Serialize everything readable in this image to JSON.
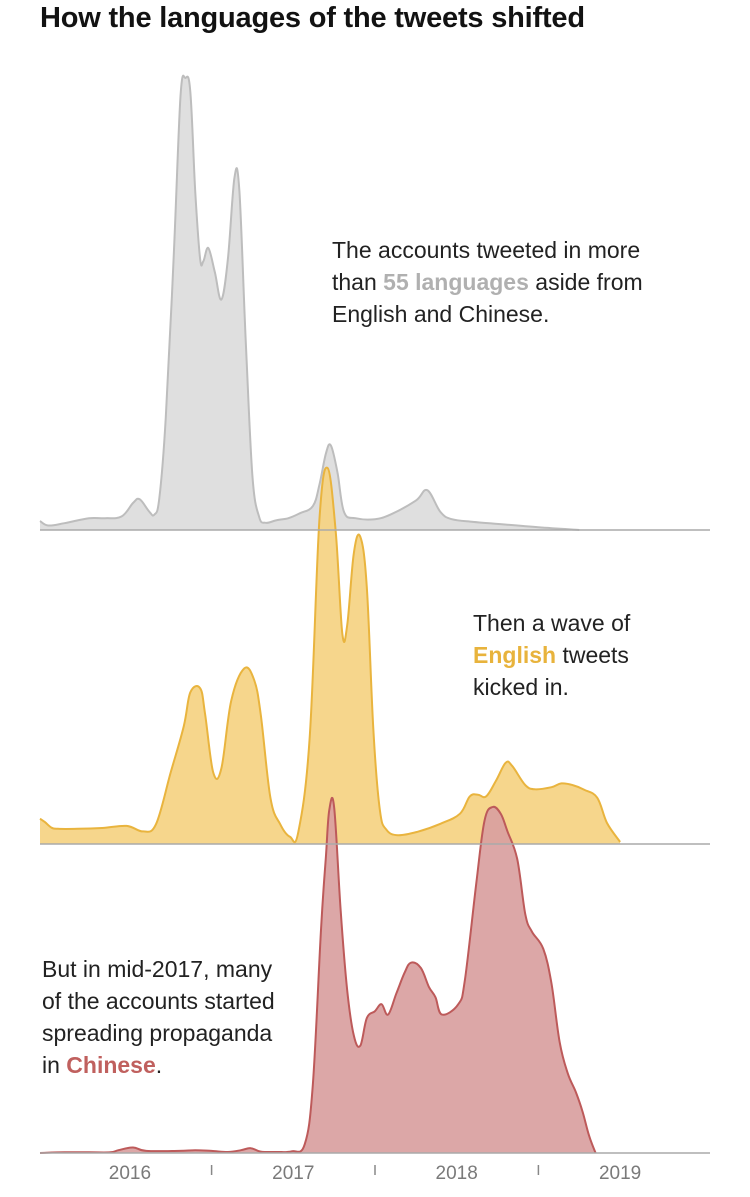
{
  "title": "How the languages of the tweets shifted",
  "colors": {
    "other_fill": "#dcdcdc",
    "other_stroke": "#bdbdbd",
    "english_fill": "#f5d382",
    "english_stroke": "#e9b43e",
    "english_text": "#e8b33c",
    "chinese_fill": "#d9a0a0",
    "chinese_stroke": "#bd5a5a",
    "chinese_text": "#c0605e",
    "other_text": "#b0b0b0",
    "baseline": "#aaaaaa"
  },
  "annotations": {
    "other": {
      "line1": "The accounts tweeted in more",
      "line2_pre": "than ",
      "line2_hl": "55 languages",
      "line2_post": " aside from",
      "line3": "English and Chinese."
    },
    "english": {
      "line1": "Then a wave of",
      "line2_hl": "English",
      "line2_post": " tweets",
      "line3": "kicked in."
    },
    "chinese": {
      "line1": "But in mid-2017, many",
      "line2": "of the accounts started",
      "line3": "spreading propaganda",
      "line4_pre": "in ",
      "line4_hl": "Chinese",
      "line4_post": "."
    }
  },
  "chart_data": {
    "type": "area",
    "title": "How the languages of the tweets shifted",
    "x_unit": "year",
    "xlim": [
      2015.45,
      2019.55
    ],
    "xticks": [
      {
        "value": 2016,
        "label": "2016"
      },
      {
        "value": 2017,
        "label": "2017"
      },
      {
        "value": 2018,
        "label": "2018"
      },
      {
        "value": 2019,
        "label": "2019"
      }
    ],
    "year_dividers": [
      2016.5,
      2017.5,
      2018.5
    ],
    "grid": false,
    "legend": "none",
    "series": [
      {
        "name": "Other languages",
        "ylim": [
          0,
          100
        ],
        "points": [
          [
            2015.45,
            2
          ],
          [
            2015.5,
            1
          ],
          [
            2015.6,
            1.5
          ],
          [
            2015.75,
            2.6
          ],
          [
            2015.85,
            2.6
          ],
          [
            2015.95,
            3
          ],
          [
            2016.02,
            6
          ],
          [
            2016.06,
            6.8
          ],
          [
            2016.12,
            4
          ],
          [
            2016.15,
            3.4
          ],
          [
            2016.18,
            7
          ],
          [
            2016.22,
            25
          ],
          [
            2016.27,
            62
          ],
          [
            2016.31,
            96
          ],
          [
            2016.34,
            100
          ],
          [
            2016.37,
            97
          ],
          [
            2016.4,
            75
          ],
          [
            2016.43,
            60
          ],
          [
            2016.45,
            59.5
          ],
          [
            2016.48,
            62.4
          ],
          [
            2016.52,
            57
          ],
          [
            2016.56,
            51
          ],
          [
            2016.6,
            60
          ],
          [
            2016.64,
            78
          ],
          [
            2016.67,
            75
          ],
          [
            2016.71,
            41
          ],
          [
            2016.75,
            12
          ],
          [
            2016.79,
            3
          ],
          [
            2016.83,
            1.6
          ],
          [
            2016.9,
            2.2
          ],
          [
            2016.97,
            2.6
          ],
          [
            2017.04,
            3.7
          ],
          [
            2017.12,
            5.3
          ],
          [
            2017.16,
            10
          ],
          [
            2017.2,
            17
          ],
          [
            2017.23,
            18.7
          ],
          [
            2017.27,
            12.8
          ],
          [
            2017.31,
            4
          ],
          [
            2017.38,
            2.6
          ],
          [
            2017.5,
            2.4
          ],
          [
            2017.6,
            3.5
          ],
          [
            2017.75,
            6.5
          ],
          [
            2017.82,
            8.8
          ],
          [
            2017.9,
            4
          ],
          [
            2017.97,
            2.4
          ],
          [
            2018.1,
            1.8
          ],
          [
            2018.2,
            1.5
          ],
          [
            2018.5,
            0.6
          ],
          [
            2018.75,
            0
          ]
        ]
      },
      {
        "name": "English",
        "ylim": [
          0,
          100
        ],
        "points": [
          [
            2015.45,
            6
          ],
          [
            2015.48,
            5.2
          ],
          [
            2015.52,
            3.9
          ],
          [
            2015.56,
            3.6
          ],
          [
            2015.68,
            3.6
          ],
          [
            2015.83,
            3.8
          ],
          [
            2015.98,
            4.3
          ],
          [
            2016.08,
            3
          ],
          [
            2016.16,
            4.7
          ],
          [
            2016.25,
            17
          ],
          [
            2016.33,
            28
          ],
          [
            2016.37,
            36
          ],
          [
            2016.43,
            37
          ],
          [
            2016.46,
            31
          ],
          [
            2016.51,
            17
          ],
          [
            2016.56,
            18
          ],
          [
            2016.62,
            34
          ],
          [
            2016.7,
            41.7
          ],
          [
            2016.76,
            39
          ],
          [
            2016.8,
            31
          ],
          [
            2016.86,
            11
          ],
          [
            2016.92,
            4.7
          ],
          [
            2016.98,
            1.7
          ],
          [
            2017.03,
            2.7
          ],
          [
            2017.1,
            25
          ],
          [
            2017.16,
            77
          ],
          [
            2017.21,
            89.3
          ],
          [
            2017.26,
            74
          ],
          [
            2017.3,
            50
          ],
          [
            2017.33,
            52
          ],
          [
            2017.37,
            69
          ],
          [
            2017.41,
            73
          ],
          [
            2017.45,
            61
          ],
          [
            2017.49,
            27
          ],
          [
            2017.53,
            8
          ],
          [
            2017.57,
            3.4
          ],
          [
            2017.64,
            2.1
          ],
          [
            2017.76,
            2.9
          ],
          [
            2017.9,
            4.8
          ],
          [
            2018.02,
            7.2
          ],
          [
            2018.08,
            11.3
          ],
          [
            2018.13,
            11.7
          ],
          [
            2018.18,
            11.3
          ],
          [
            2018.24,
            15
          ],
          [
            2018.3,
            19.3
          ],
          [
            2018.34,
            18.5
          ],
          [
            2018.42,
            14
          ],
          [
            2018.48,
            13
          ],
          [
            2018.58,
            13.5
          ],
          [
            2018.64,
            14.4
          ],
          [
            2018.71,
            14
          ],
          [
            2018.78,
            12.9
          ],
          [
            2018.86,
            11
          ],
          [
            2018.92,
            5
          ],
          [
            2019,
            0.5
          ]
        ]
      },
      {
        "name": "Chinese",
        "ylim": [
          0,
          100
        ],
        "points": [
          [
            2015.45,
            0
          ],
          [
            2015.6,
            0.2
          ],
          [
            2015.75,
            0.2
          ],
          [
            2015.88,
            0.2
          ],
          [
            2015.93,
            0.8
          ],
          [
            2016.02,
            1.6
          ],
          [
            2016.1,
            0.6
          ],
          [
            2016.3,
            0.6
          ],
          [
            2016.4,
            0.8
          ],
          [
            2016.5,
            0.6
          ],
          [
            2016.6,
            0.3
          ],
          [
            2016.68,
            0.8
          ],
          [
            2016.74,
            1.4
          ],
          [
            2016.8,
            0.4
          ],
          [
            2016.9,
            0.3
          ],
          [
            2016.99,
            0.5
          ],
          [
            2017.07,
            2.5
          ],
          [
            2017.12,
            20
          ],
          [
            2017.17,
            65
          ],
          [
            2017.2,
            86
          ],
          [
            2017.22,
            99
          ],
          [
            2017.25,
            100
          ],
          [
            2017.29,
            70
          ],
          [
            2017.33,
            47
          ],
          [
            2017.37,
            34
          ],
          [
            2017.41,
            31
          ],
          [
            2017.45,
            39
          ],
          [
            2017.5,
            41
          ],
          [
            2017.54,
            43
          ],
          [
            2017.58,
            40
          ],
          [
            2017.63,
            46
          ],
          [
            2017.68,
            52
          ],
          [
            2017.72,
            55
          ],
          [
            2017.78,
            53.5
          ],
          [
            2017.83,
            48
          ],
          [
            2017.87,
            45
          ],
          [
            2017.91,
            40
          ],
          [
            2018.01,
            43
          ],
          [
            2018.05,
            50
          ],
          [
            2018.12,
            78
          ],
          [
            2018.17,
            96
          ],
          [
            2018.22,
            100
          ],
          [
            2018.27,
            98
          ],
          [
            2018.31,
            93
          ],
          [
            2018.37,
            85
          ],
          [
            2018.42,
            69
          ],
          [
            2018.46,
            64
          ],
          [
            2018.53,
            59
          ],
          [
            2018.58,
            49
          ],
          [
            2018.63,
            32
          ],
          [
            2018.68,
            23
          ],
          [
            2018.73,
            17.5
          ],
          [
            2018.77,
            12
          ],
          [
            2018.81,
            5
          ],
          [
            2018.85,
            0
          ]
        ]
      }
    ]
  }
}
